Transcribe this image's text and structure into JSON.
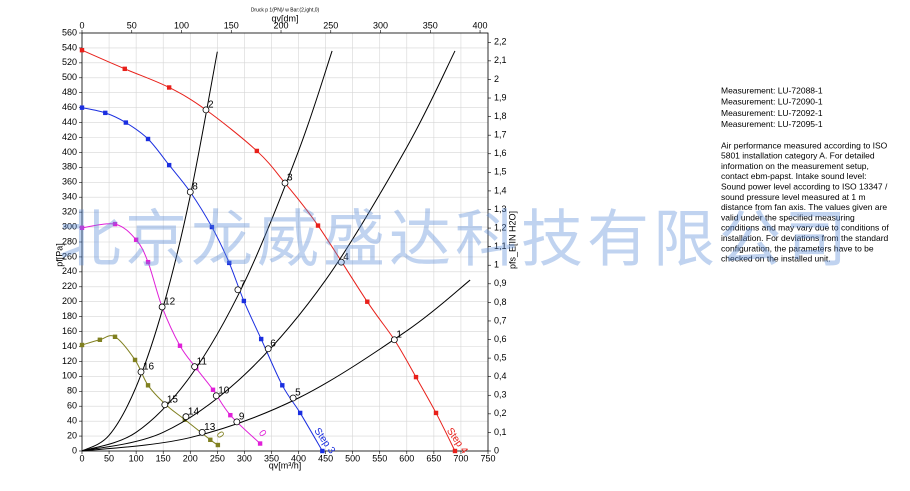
{
  "chart_data": {
    "type": "line",
    "title": "Druck p 1(PN)/ w Bar:(2,ight,0)",
    "x_label": "qv[m³/h]",
    "x2_label": "qv[dm]",
    "y_label": "pf[Pa]",
    "y2_label": "pfs_E[IN H2O]",
    "xlim": [
      0,
      750
    ],
    "xticks": [
      0,
      50,
      100,
      150,
      200,
      250,
      300,
      350,
      400,
      450,
      500,
      550,
      600,
      650,
      700,
      750
    ],
    "x2lim": [
      0,
      408
    ],
    "x2ticks": [
      0,
      50,
      100,
      150,
      200,
      250,
      300,
      350,
      400
    ],
    "ylim": [
      0,
      560
    ],
    "yticks": [
      0,
      20,
      40,
      60,
      80,
      100,
      120,
      140,
      160,
      180,
      200,
      220,
      240,
      260,
      280,
      300,
      320,
      340,
      360,
      380,
      400,
      420,
      440,
      460,
      480,
      500,
      520,
      540,
      560
    ],
    "y2lim": [
      0,
      2.25
    ],
    "y2ticks": [
      0,
      {
        "value": 0.1,
        "label": "0,1"
      },
      {
        "value": 0.2,
        "label": "0,2"
      },
      {
        "value": 0.3,
        "label": "0,3"
      },
      {
        "value": 0.4,
        "label": "0,4"
      },
      {
        "value": 0.5,
        "label": "0,5"
      },
      {
        "value": 0.6,
        "label": "0,6"
      },
      {
        "value": 0.7,
        "label": "0,7"
      },
      {
        "value": 0.8,
        "label": "0,8"
      },
      {
        "value": 0.9,
        "label": "0,9"
      },
      1,
      {
        "value": 1.1,
        "label": "1,1"
      },
      {
        "value": 1.2,
        "label": "1,2"
      },
      {
        "value": 1.3,
        "label": "1,3"
      },
      {
        "value": 1.4,
        "label": "1,4"
      },
      {
        "value": 1.5,
        "label": "1,5"
      },
      {
        "value": 1.6,
        "label": "1,6"
      },
      {
        "value": 1.7,
        "label": "1,7"
      },
      {
        "value": 1.8,
        "label": "1,8"
      },
      {
        "value": 1.9,
        "label": "1,9"
      },
      2,
      {
        "value": 2.1,
        "label": "2,1"
      },
      {
        "value": 2.2,
        "label": "2,2"
      }
    ],
    "grid": true,
    "series": [
      {
        "name": "Step 4",
        "color": "#e8201a",
        "marker": true,
        "x": [
          0,
          79,
          161,
          229,
          323,
          375,
          436,
          527,
          577,
          617,
          654,
          689
        ],
        "values": [
          537,
          512,
          487,
          457,
          402,
          359,
          302,
          200,
          149,
          99,
          51,
          0
        ]
      },
      {
        "name": "Step 3",
        "color": "#1a2ee0",
        "marker": true,
        "x": [
          0,
          43,
          81,
          122,
          161,
          200,
          240,
          272,
          299,
          331,
          370,
          403,
          444
        ],
        "values": [
          460,
          453,
          440,
          418,
          383,
          347,
          300,
          252,
          201,
          150,
          88,
          51,
          0
        ]
      },
      {
        "name": "0",
        "color": "#e020d8",
        "marker": true,
        "x": [
          0,
          61,
          100,
          122,
          148,
          181,
          211,
          242,
          274,
          329
        ],
        "values": [
          299,
          304,
          283,
          253,
          193,
          141,
          111,
          82,
          48,
          10
        ]
      },
      {
        "name": "0",
        "color": "#808020",
        "marker": true,
        "x": [
          0,
          33,
          61,
          98,
          122,
          155,
          190,
          237,
          251
        ],
        "values": [
          142,
          149,
          153,
          122,
          88,
          62,
          42,
          15,
          8
        ]
      },
      {
        "color": "#000000",
        "marker": false,
        "x": [
          0,
          50,
          100,
          150,
          200,
          250
        ],
        "values": [
          0,
          21,
          86,
          193,
          342,
          535
        ]
      },
      {
        "color": "#000000",
        "marker": false,
        "x": [
          0,
          100,
          200,
          300,
          400,
          462
        ],
        "values": [
          0,
          25,
          100,
          226,
          402,
          536
        ]
      },
      {
        "color": "#000000",
        "marker": false,
        "x": [
          0,
          150,
          300,
          450,
          600,
          689
        ],
        "values": [
          0,
          25,
          102,
          229,
          407,
          536
        ]
      },
      {
        "color": "#000000",
        "marker": false,
        "x": [
          0,
          200,
          400,
          600,
          717
        ],
        "values": [
          0,
          18,
          71,
          161,
          229
        ]
      }
    ],
    "points": [
      {
        "label": "1",
        "x": 577,
        "y": 149
      },
      {
        "label": "2",
        "x": 229,
        "y": 457
      },
      {
        "label": "3",
        "x": 375,
        "y": 359
      },
      {
        "label": "4",
        "x": 479,
        "y": 253
      },
      {
        "label": "5",
        "x": 390,
        "y": 71
      },
      {
        "label": "6",
        "x": 344,
        "y": 137
      },
      {
        "label": "7",
        "x": 288,
        "y": 216
      },
      {
        "label": "8",
        "x": 200,
        "y": 347
      },
      {
        "label": "9",
        "x": 286,
        "y": 39
      },
      {
        "label": "10",
        "x": 248,
        "y": 74
      },
      {
        "label": "11",
        "x": 208,
        "y": 113
      },
      {
        "label": "12",
        "x": 148,
        "y": 193
      },
      {
        "label": "13",
        "x": 222,
        "y": 25
      },
      {
        "label": "14",
        "x": 192,
        "y": 46
      },
      {
        "label": "15",
        "x": 153,
        "y": 62
      },
      {
        "label": "16",
        "x": 109,
        "y": 106
      }
    ]
  },
  "side_note": {
    "measurements": [
      "Measurement: LU-72088-1",
      "Measurement: LU-72090-1",
      "Measurement: LU-72092-1",
      "Measurement: LU-72095-1"
    ],
    "lines": [
      "Air performance measured according to ISO",
      "5801 installation category A. For detailed",
      "information on the measurement setup,",
      "contact ebm-papst. Intake sound level:",
      "Sound power level according to ISO 13347 /",
      "sound pressure level measured at 1 m",
      "distance from fan axis. The values given are",
      "valid under the specified measuring",
      "conditions and may vary due to conditions of",
      "installation. For deviations from the standard",
      "configuration, the parameters have to be",
      "checked on the installed unit."
    ]
  },
  "watermark": "北京龙威盛达科技有限公司"
}
